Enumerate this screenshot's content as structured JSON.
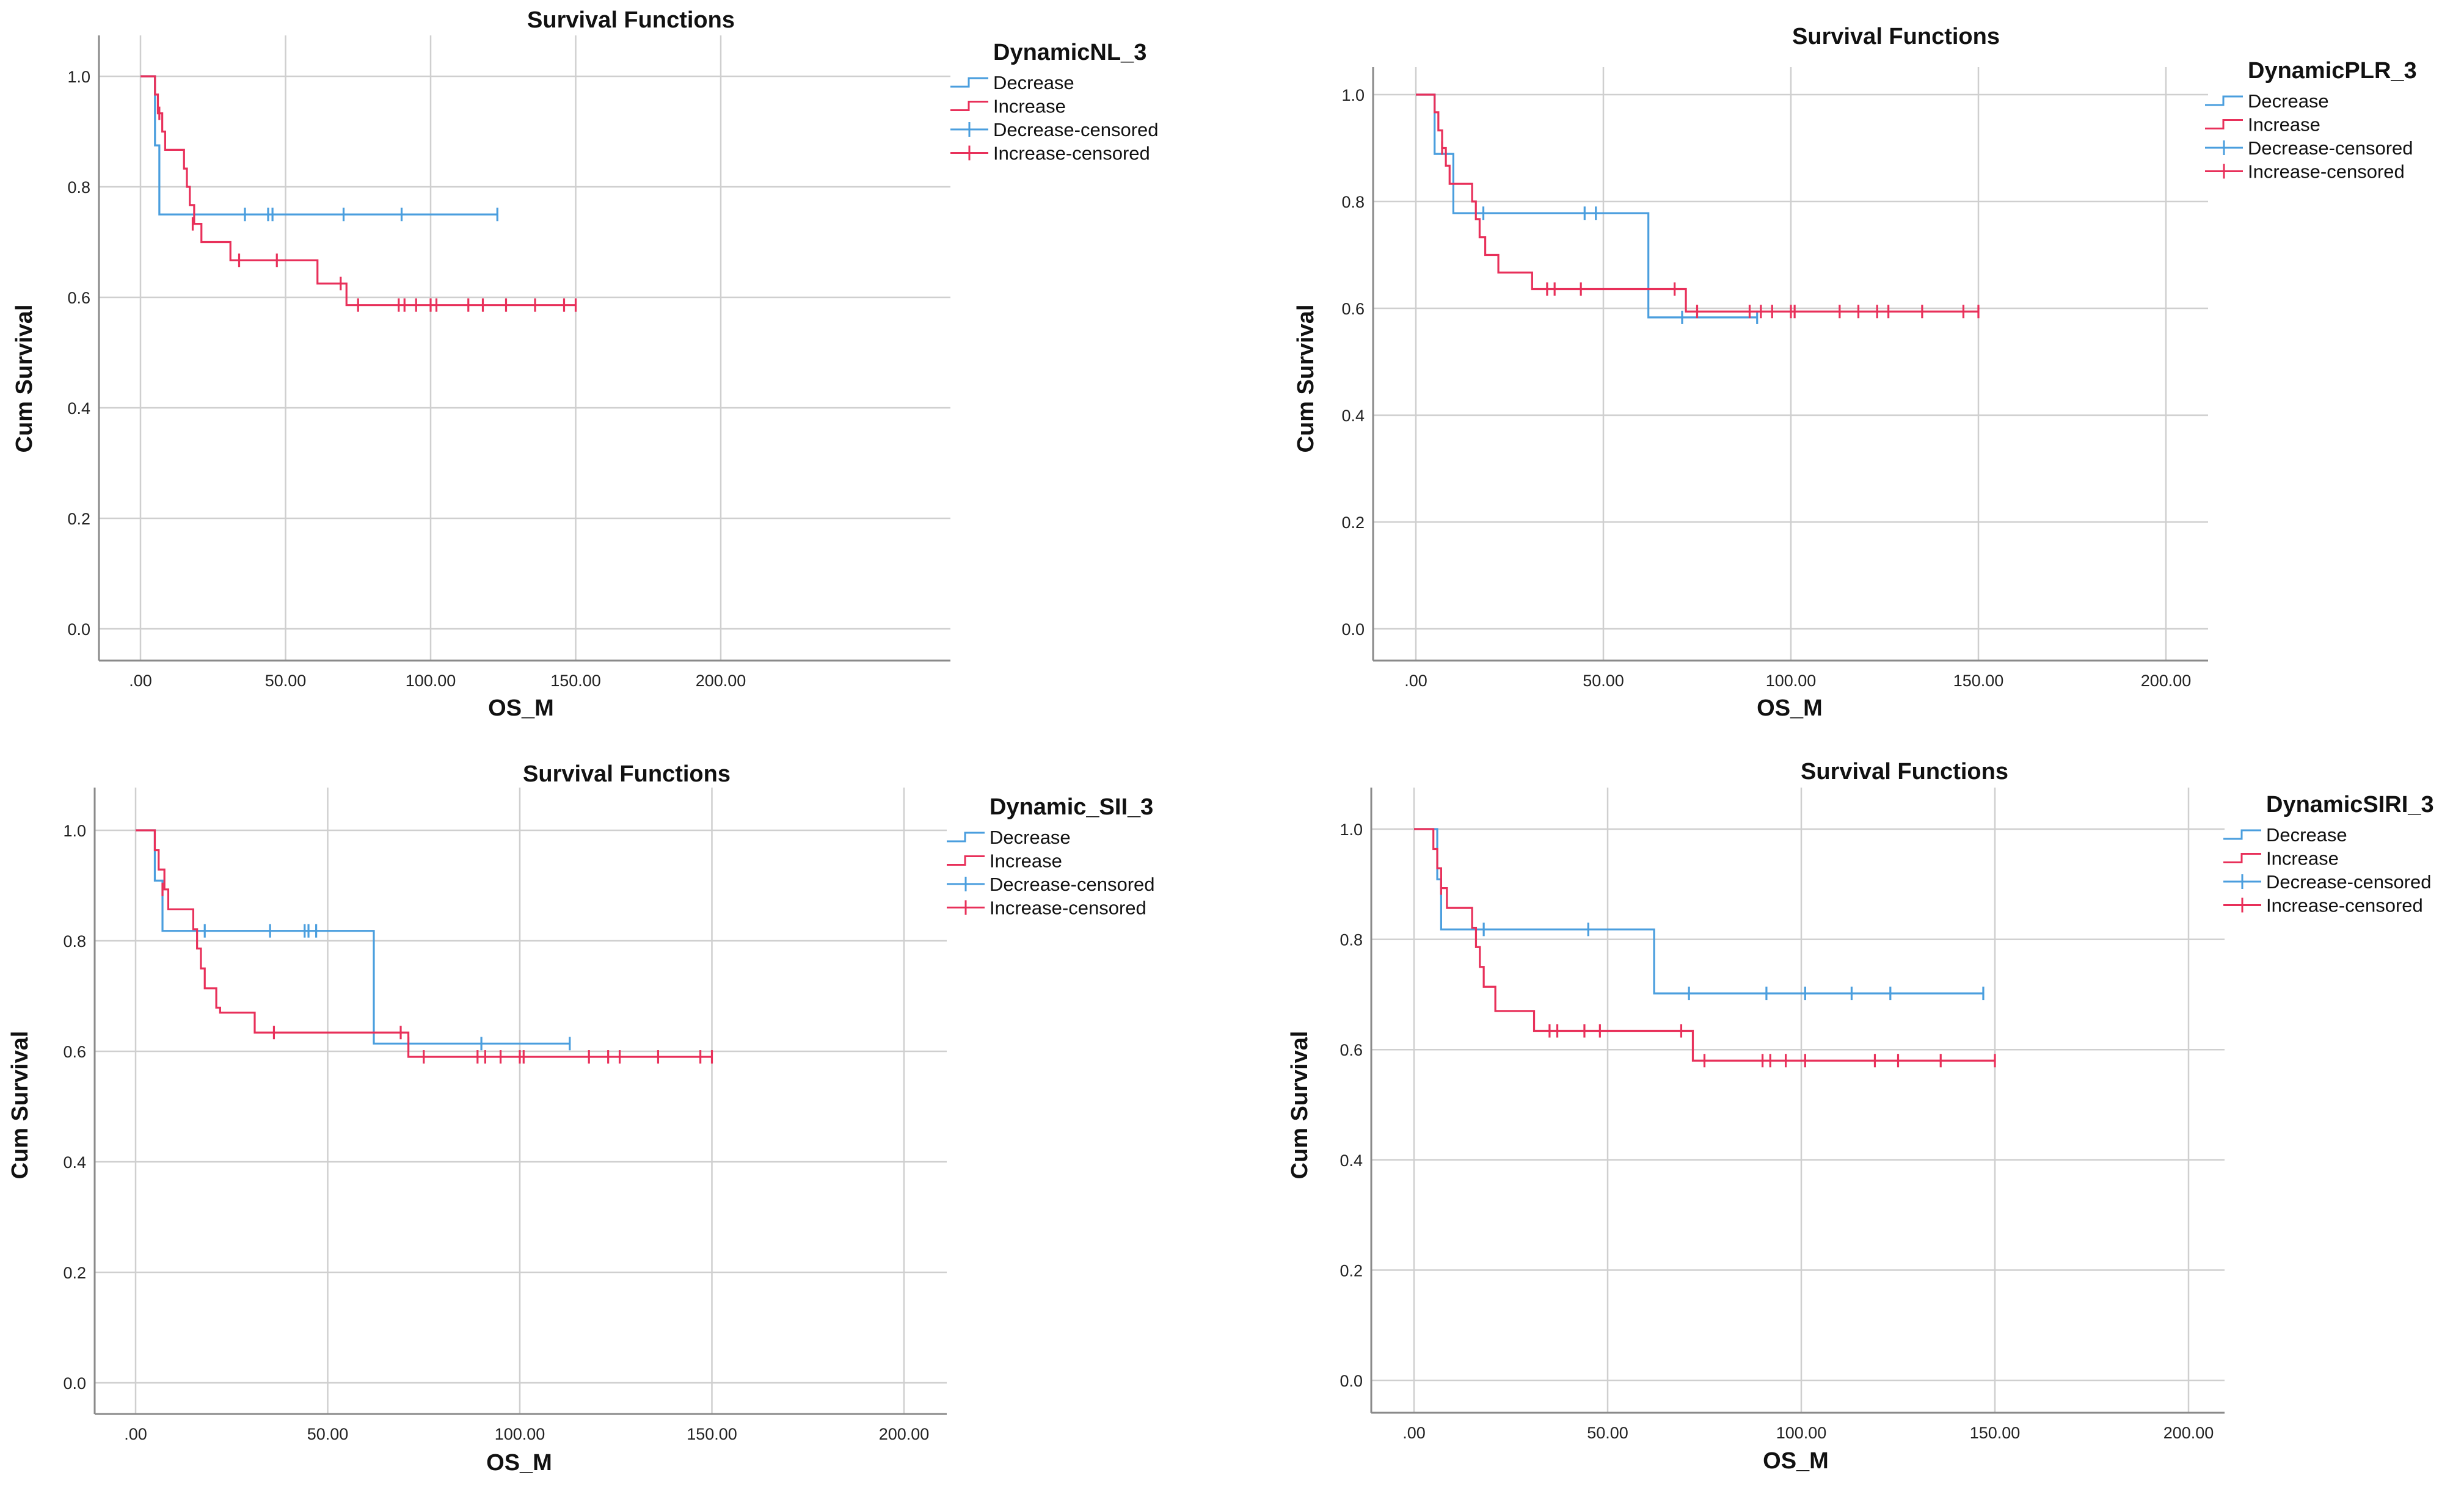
{
  "colors": {
    "decrease": "#4a9ede",
    "increase": "#e8305a",
    "grid": "#cfcfcf",
    "frame": "#8a8a8a"
  },
  "chart_data": [
    {
      "type": "line",
      "title": "Survival Functions",
      "xlabel": "OS_M",
      "ylabel": "Cum Survival",
      "xlim": [
        0,
        200
      ],
      "ylim": [
        0,
        1
      ],
      "x_ticks": [
        ".00",
        "50.00",
        "100.00",
        "150.00",
        "200.00"
      ],
      "y_ticks": [
        "0.0",
        "0.2",
        "0.4",
        "0.6",
        "0.8",
        "1.0"
      ],
      "grid": true,
      "legend_title": "DynamicNL_3",
      "legend_items": [
        "Decrease",
        "Increase",
        "Decrease-censored",
        "Increase-censored"
      ],
      "series": [
        {
          "name": "Decrease",
          "steps": [
            [
              0,
              1.0
            ],
            [
              5,
              0.875
            ],
            [
              6.5,
              0.75
            ]
          ],
          "end": 123,
          "censored": [
            [
              36,
              0.75
            ],
            [
              44,
              0.75
            ],
            [
              45.5,
              0.75
            ],
            [
              70,
              0.75
            ],
            [
              90,
              0.75
            ],
            [
              123,
              0.75
            ]
          ]
        },
        {
          "name": "Increase",
          "steps": [
            [
              0,
              1.0
            ],
            [
              5,
              0.967
            ],
            [
              6,
              0.933
            ],
            [
              7.5,
              0.9
            ],
            [
              8.5,
              0.867
            ],
            [
              15,
              0.833
            ],
            [
              16,
              0.8
            ],
            [
              17,
              0.767
            ],
            [
              18.5,
              0.733
            ],
            [
              21,
              0.7
            ],
            [
              31,
              0.667
            ],
            [
              61,
              0.625
            ],
            [
              71,
              0.586
            ]
          ],
          "end": 150,
          "censored": [
            [
              6.5,
              0.933
            ],
            [
              18,
              0.733
            ],
            [
              34,
              0.667
            ],
            [
              47,
              0.667
            ],
            [
              69,
              0.625
            ],
            [
              75,
              0.586
            ],
            [
              89,
              0.586
            ],
            [
              91,
              0.586
            ],
            [
              95,
              0.586
            ],
            [
              100,
              0.586
            ],
            [
              102,
              0.586
            ],
            [
              113,
              0.586
            ],
            [
              118,
              0.586
            ],
            [
              126,
              0.586
            ],
            [
              136,
              0.586
            ],
            [
              146,
              0.586
            ],
            [
              150,
              0.586
            ]
          ]
        }
      ]
    },
    {
      "type": "line",
      "title": "Survival Functions",
      "xlabel": "OS_M",
      "ylabel": "Cum Survival",
      "xlim": [
        0,
        200
      ],
      "ylim": [
        0,
        1
      ],
      "x_ticks": [
        ".00",
        "50.00",
        "100.00",
        "150.00",
        "200.00"
      ],
      "y_ticks": [
        "0.0",
        "0.2",
        "0.4",
        "0.6",
        "0.8",
        "1.0"
      ],
      "grid": true,
      "legend_title": "DynamicPLR_3",
      "legend_items": [
        "Decrease",
        "Increase",
        "Decrease-censored",
        "Increase-censored"
      ],
      "series": [
        {
          "name": "Decrease",
          "steps": [
            [
              0,
              1.0
            ],
            [
              5,
              0.889
            ],
            [
              10,
              0.778
            ],
            [
              62,
              0.583
            ]
          ],
          "end": 91,
          "censored": [
            [
              18,
              0.778
            ],
            [
              45,
              0.778
            ],
            [
              48,
              0.778
            ],
            [
              71,
              0.583
            ],
            [
              91,
              0.583
            ]
          ]
        },
        {
          "name": "Increase",
          "steps": [
            [
              0,
              1.0
            ],
            [
              5,
              0.967
            ],
            [
              6,
              0.933
            ],
            [
              7,
              0.9
            ],
            [
              8,
              0.867
            ],
            [
              9,
              0.833
            ],
            [
              15,
              0.8
            ],
            [
              16,
              0.767
            ],
            [
              17,
              0.733
            ],
            [
              18.5,
              0.7
            ],
            [
              22,
              0.667
            ],
            [
              31,
              0.636
            ],
            [
              72,
              0.594
            ]
          ],
          "end": 150,
          "censored": [
            [
              7,
              0.9
            ],
            [
              35,
              0.636
            ],
            [
              37,
              0.636
            ],
            [
              44,
              0.636
            ],
            [
              69,
              0.636
            ],
            [
              75,
              0.594
            ],
            [
              89,
              0.594
            ],
            [
              92,
              0.594
            ],
            [
              95,
              0.594
            ],
            [
              100,
              0.594
            ],
            [
              101,
              0.594
            ],
            [
              113,
              0.594
            ],
            [
              118,
              0.594
            ],
            [
              123,
              0.594
            ],
            [
              126,
              0.594
            ],
            [
              135,
              0.594
            ],
            [
              146,
              0.594
            ],
            [
              150,
              0.594
            ]
          ]
        }
      ]
    },
    {
      "type": "line",
      "title": "Survival Functions",
      "xlabel": "OS_M",
      "ylabel": "Cum Survival",
      "xlim": [
        0,
        200
      ],
      "ylim": [
        0,
        1
      ],
      "x_ticks": [
        ".00",
        "50.00",
        "100.00",
        "150.00",
        "200.00"
      ],
      "y_ticks": [
        "0.0",
        "0.2",
        "0.4",
        "0.6",
        "0.8",
        "1.0"
      ],
      "grid": true,
      "legend_title": "Dynamic_SII_3",
      "legend_items": [
        "Decrease",
        "Increase",
        "Decrease-censored",
        "Increase-censored"
      ],
      "series": [
        {
          "name": "Decrease",
          "steps": [
            [
              0,
              1.0
            ],
            [
              5,
              0.909
            ],
            [
              7,
              0.818
            ],
            [
              62,
              0.614
            ]
          ],
          "end": 113,
          "censored": [
            [
              18,
              0.818
            ],
            [
              35,
              0.818
            ],
            [
              44,
              0.818
            ],
            [
              45,
              0.818
            ],
            [
              47,
              0.818
            ],
            [
              71,
              0.614
            ],
            [
              90,
              0.614
            ],
            [
              113,
              0.614
            ]
          ]
        },
        {
          "name": "Increase",
          "steps": [
            [
              0,
              1.0
            ],
            [
              5,
              0.964
            ],
            [
              6,
              0.929
            ],
            [
              7.5,
              0.893
            ],
            [
              8.5,
              0.857
            ],
            [
              15,
              0.821
            ],
            [
              16,
              0.786
            ],
            [
              17,
              0.75
            ],
            [
              18,
              0.714
            ],
            [
              21,
              0.679
            ],
            [
              22,
              0.67
            ],
            [
              31,
              0.634
            ],
            [
              71,
              0.59
            ]
          ],
          "end": 150,
          "censored": [
            [
              7,
              0.893
            ],
            [
              36,
              0.634
            ],
            [
              69,
              0.634
            ],
            [
              75,
              0.59
            ],
            [
              89,
              0.59
            ],
            [
              91,
              0.59
            ],
            [
              95,
              0.59
            ],
            [
              100,
              0.59
            ],
            [
              101,
              0.59
            ],
            [
              118,
              0.59
            ],
            [
              123,
              0.59
            ],
            [
              126,
              0.59
            ],
            [
              136,
              0.59
            ],
            [
              147,
              0.59
            ],
            [
              150,
              0.59
            ]
          ]
        }
      ]
    },
    {
      "type": "line",
      "title": "Survival Functions",
      "xlabel": "OS_M",
      "ylabel": "Cum Survival",
      "xlim": [
        0,
        200
      ],
      "ylim": [
        0,
        1
      ],
      "x_ticks": [
        ".00",
        "50.00",
        "100.00",
        "150.00",
        "200.00"
      ],
      "y_ticks": [
        "0.0",
        "0.2",
        "0.4",
        "0.6",
        "0.8",
        "1.0"
      ],
      "grid": true,
      "legend_title": "DynamicSIRI_3",
      "legend_items": [
        "Decrease",
        "Increase",
        "Decrease-censored",
        "Increase-censored"
      ],
      "series": [
        {
          "name": "Decrease",
          "steps": [
            [
              0,
              1.0
            ],
            [
              6,
              0.909
            ],
            [
              7,
              0.818
            ],
            [
              62,
              0.702
            ]
          ],
          "end": 147,
          "censored": [
            [
              18,
              0.818
            ],
            [
              45,
              0.818
            ],
            [
              71,
              0.702
            ],
            [
              91,
              0.702
            ],
            [
              101,
              0.702
            ],
            [
              113,
              0.702
            ],
            [
              123,
              0.702
            ],
            [
              147,
              0.702
            ]
          ]
        },
        {
          "name": "Increase",
          "steps": [
            [
              0,
              1.0
            ],
            [
              5,
              0.964
            ],
            [
              6,
              0.929
            ],
            [
              7,
              0.893
            ],
            [
              8.5,
              0.857
            ],
            [
              15,
              0.821
            ],
            [
              16,
              0.786
            ],
            [
              17,
              0.75
            ],
            [
              18,
              0.714
            ],
            [
              21,
              0.67
            ],
            [
              31,
              0.634
            ],
            [
              72,
              0.58
            ]
          ],
          "end": 150,
          "censored": [
            [
              7,
              0.893
            ],
            [
              35,
              0.634
            ],
            [
              37,
              0.634
            ],
            [
              44,
              0.634
            ],
            [
              48,
              0.634
            ],
            [
              69,
              0.634
            ],
            [
              75,
              0.58
            ],
            [
              90,
              0.58
            ],
            [
              92,
              0.58
            ],
            [
              96,
              0.58
            ],
            [
              101,
              0.58
            ],
            [
              119,
              0.58
            ],
            [
              125,
              0.58
            ],
            [
              136,
              0.58
            ],
            [
              150,
              0.58
            ]
          ]
        }
      ]
    }
  ]
}
